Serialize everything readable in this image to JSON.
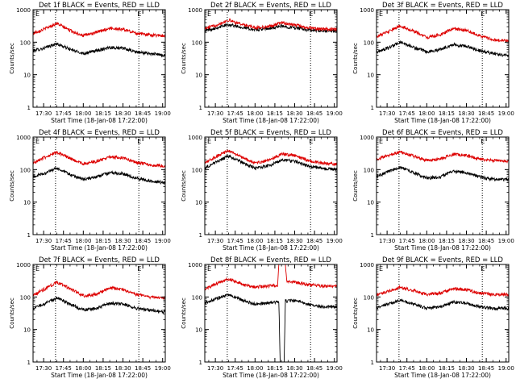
{
  "chart_data": [
    {
      "type": "line",
      "title": "Det 1f BLACK = Events, RED = LLD",
      "xlabel": "Start Time (18-Jan-08 17:22:00)",
      "ylabel": "Counts/sec",
      "yscale": "log",
      "ylim": [
        1,
        1000
      ],
      "xlim": [
        "17:22",
        "19:02"
      ],
      "x_ticks": [
        "17:30",
        "17:45",
        "18:00",
        "18:15",
        "18:30",
        "18:45",
        "19:00"
      ],
      "y_ticks": [
        "1",
        "10",
        "100",
        "1000"
      ],
      "marker_times": [
        "17:39",
        "18:42"
      ],
      "top_marks": [
        "E",
        "E"
      ],
      "x": [
        "17:22",
        "17:30",
        "17:40",
        "17:50",
        "18:00",
        "18:10",
        "18:20",
        "18:30",
        "18:40",
        "18:50",
        "19:00",
        "19:02"
      ],
      "series": [
        {
          "name": "BLACK = Events",
          "color": "#000000",
          "values": [
            55,
            65,
            90,
            60,
            45,
            55,
            70,
            65,
            50,
            45,
            40,
            40
          ]
        },
        {
          "name": "RED = LLD",
          "color": "#dd0000",
          "values": [
            190,
            250,
            380,
            230,
            160,
            200,
            270,
            250,
            190,
            170,
            160,
            160
          ]
        }
      ]
    },
    {
      "type": "line",
      "title": "Det 2f BLACK = Events, RED = LLD",
      "xlabel": "Start Time (18-Jan-08 17:22:00)",
      "ylabel": "Counts/sec",
      "yscale": "log",
      "ylim": [
        1,
        1000
      ],
      "xlim": [
        "17:22",
        "19:02"
      ],
      "x_ticks": [
        "17:30",
        "17:45",
        "18:00",
        "18:15",
        "18:30",
        "18:45",
        "19:00"
      ],
      "y_ticks": [
        "1",
        "10",
        "100",
        "1000"
      ],
      "marker_times": [
        "17:39",
        "18:42"
      ],
      "top_marks": [
        "E",
        "E"
      ],
      "x": [
        "17:22",
        "17:30",
        "17:40",
        "17:50",
        "18:00",
        "18:10",
        "18:20",
        "18:30",
        "18:40",
        "18:50",
        "19:00",
        "19:02"
      ],
      "series": [
        {
          "name": "BLACK = Events",
          "color": "#000000",
          "values": [
            230,
            270,
            350,
            290,
            240,
            260,
            310,
            280,
            240,
            220,
            220,
            220
          ]
        },
        {
          "name": "RED = LLD",
          "color": "#dd0000",
          "values": [
            260,
            330,
            480,
            360,
            280,
            300,
            400,
            340,
            280,
            250,
            250,
            250
          ]
        }
      ]
    },
    {
      "type": "line",
      "title": "Det 3f BLACK = Events, RED = LLD",
      "xlabel": "Start Time (18-Jan-08 17:22:00)",
      "ylabel": "Counts/sec",
      "yscale": "log",
      "ylim": [
        1,
        1000
      ],
      "xlim": [
        "17:22",
        "19:02"
      ],
      "x_ticks": [
        "17:30",
        "17:45",
        "18:00",
        "18:15",
        "18:30",
        "18:45",
        "19:00"
      ],
      "y_ticks": [
        "1",
        "10",
        "100",
        "1000"
      ],
      "marker_times": [
        "17:39",
        "18:42"
      ],
      "top_marks": [
        "E",
        "E"
      ],
      "x": [
        "17:22",
        "17:30",
        "17:40",
        "17:50",
        "18:00",
        "18:10",
        "18:20",
        "18:30",
        "18:40",
        "18:50",
        "19:00",
        "19:02"
      ],
      "series": [
        {
          "name": "BLACK = Events",
          "color": "#000000",
          "values": [
            50,
            65,
            100,
            70,
            50,
            60,
            85,
            75,
            55,
            45,
            40,
            40
          ]
        },
        {
          "name": "RED = LLD",
          "color": "#dd0000",
          "values": [
            150,
            200,
            320,
            220,
            140,
            170,
            260,
            230,
            160,
            120,
            110,
            110
          ]
        }
      ]
    },
    {
      "type": "line",
      "title": "Det 4f BLACK = Events, RED = LLD",
      "xlabel": "Start Time (18-Jan-08 17:22:00)",
      "ylabel": "Counts/sec",
      "yscale": "log",
      "ylim": [
        1,
        1000
      ],
      "xlim": [
        "17:22",
        "19:02"
      ],
      "x_ticks": [
        "17:30",
        "17:45",
        "18:00",
        "18:15",
        "18:30",
        "18:45",
        "19:00"
      ],
      "y_ticks": [
        "1",
        "10",
        "100",
        "1000"
      ],
      "marker_times": [
        "17:39",
        "18:42"
      ],
      "top_marks": [
        "E",
        "E"
      ],
      "x": [
        "17:22",
        "17:30",
        "17:40",
        "17:50",
        "18:00",
        "18:10",
        "18:20",
        "18:30",
        "18:40",
        "18:50",
        "19:00",
        "19:02"
      ],
      "series": [
        {
          "name": "BLACK = Events",
          "color": "#000000",
          "values": [
            60,
            75,
            110,
            70,
            50,
            60,
            80,
            75,
            55,
            45,
            40,
            40
          ]
        },
        {
          "name": "RED = LLD",
          "color": "#dd0000",
          "values": [
            160,
            230,
            340,
            220,
            150,
            180,
            250,
            230,
            170,
            140,
            130,
            130
          ]
        }
      ]
    },
    {
      "type": "line",
      "title": "Det 5f BLACK = Events, RED = LLD",
      "xlabel": "Start Time (18-Jan-08 17:22:00)",
      "ylabel": "Counts/sec",
      "yscale": "log",
      "ylim": [
        1,
        1000
      ],
      "xlim": [
        "17:22",
        "19:02"
      ],
      "x_ticks": [
        "17:30",
        "17:45",
        "18:00",
        "18:15",
        "18:30",
        "18:45",
        "19:00"
      ],
      "y_ticks": [
        "1",
        "10",
        "100",
        "1000"
      ],
      "marker_times": [
        "17:39",
        "18:42"
      ],
      "top_marks": [
        "E",
        "E"
      ],
      "x": [
        "17:22",
        "17:30",
        "17:40",
        "17:50",
        "18:00",
        "18:10",
        "18:20",
        "18:30",
        "18:40",
        "18:50",
        "19:00",
        "19:02"
      ],
      "series": [
        {
          "name": "BLACK = Events",
          "color": "#000000",
          "values": [
            110,
            170,
            260,
            170,
            110,
            130,
            200,
            180,
            130,
            110,
            100,
            100
          ]
        },
        {
          "name": "RED = LLD",
          "color": "#dd0000",
          "values": [
            170,
            240,
            390,
            240,
            160,
            190,
            300,
            270,
            190,
            160,
            150,
            150
          ]
        }
      ]
    },
    {
      "type": "line",
      "title": "Det 6f BLACK = Events, RED = LLD",
      "xlabel": "Start Time (18-Jan-08 17:22:00)",
      "ylabel": "Counts/sec",
      "yscale": "log",
      "ylim": [
        1,
        1000
      ],
      "xlim": [
        "17:22",
        "19:02"
      ],
      "x_ticks": [
        "17:30",
        "17:45",
        "18:00",
        "18:15",
        "18:30",
        "18:45",
        "19:00"
      ],
      "y_ticks": [
        "1",
        "10",
        "100",
        "1000"
      ],
      "marker_times": [
        "17:39",
        "18:42"
      ],
      "top_marks": [
        "E",
        "E"
      ],
      "x": [
        "17:22",
        "17:30",
        "17:40",
        "17:50",
        "18:00",
        "18:10",
        "18:20",
        "18:30",
        "18:40",
        "18:50",
        "19:00",
        "19:02"
      ],
      "series": [
        {
          "name": "BLACK = Events",
          "color": "#000000",
          "values": [
            60,
            85,
            120,
            80,
            55,
            60,
            90,
            80,
            60,
            50,
            50,
            50
          ]
        },
        {
          "name": "RED = LLD",
          "color": "#dd0000",
          "values": [
            200,
            270,
            350,
            260,
            190,
            210,
            300,
            270,
            210,
            190,
            180,
            180
          ]
        }
      ]
    },
    {
      "type": "line",
      "title": "Det 7f BLACK = Events, RED = LLD",
      "xlabel": "Start Time (18-Jan-08 17:22:00)",
      "ylabel": "Counts/sec",
      "yscale": "log",
      "ylim": [
        1,
        1000
      ],
      "xlim": [
        "17:22",
        "19:02"
      ],
      "x_ticks": [
        "17:30",
        "17:45",
        "18:00",
        "18:15",
        "18:30",
        "18:45",
        "19:00"
      ],
      "y_ticks": [
        "1",
        "10",
        "100",
        "1000"
      ],
      "marker_times": [
        "17:39",
        "18:42"
      ],
      "top_marks": [
        "E",
        "E"
      ],
      "x": [
        "17:22",
        "17:30",
        "17:40",
        "17:50",
        "18:00",
        "18:10",
        "18:20",
        "18:30",
        "18:40",
        "18:50",
        "19:00",
        "19:02"
      ],
      "series": [
        {
          "name": "BLACK = Events",
          "color": "#000000",
          "values": [
            45,
            60,
            95,
            60,
            40,
            45,
            65,
            60,
            45,
            40,
            35,
            35
          ]
        },
        {
          "name": "RED = LLD",
          "color": "#dd0000",
          "values": [
            110,
            170,
            290,
            180,
            110,
            120,
            190,
            170,
            120,
            100,
            95,
            95
          ]
        }
      ]
    },
    {
      "type": "line",
      "title": "Det 8f BLACK = Events, RED = LLD",
      "xlabel": "Start Time (18-Jan-08 17:22:00)",
      "ylabel": "Counts/sec",
      "yscale": "log",
      "ylim": [
        1,
        1000
      ],
      "xlim": [
        "17:22",
        "19:02"
      ],
      "x_ticks": [
        "17:30",
        "17:45",
        "18:00",
        "18:15",
        "18:30",
        "18:45",
        "19:00"
      ],
      "y_ticks": [
        "1",
        "10",
        "100",
        "1000"
      ],
      "marker_times": [
        "17:39",
        "18:42"
      ],
      "top_marks": [
        "E",
        "E"
      ],
      "x": [
        "17:22",
        "17:30",
        "17:40",
        "17:50",
        "18:00",
        "18:10",
        "18:17",
        "18:18",
        "18:19",
        "18:22",
        "18:23",
        "18:24",
        "18:30",
        "18:40",
        "18:50",
        "19:00",
        "19:02"
      ],
      "series": [
        {
          "name": "BLACK = Events",
          "color": "#000000",
          "values": [
            65,
            85,
            120,
            80,
            60,
            65,
            70,
            70,
            1,
            1,
            80,
            75,
            80,
            60,
            50,
            50,
            50
          ]
        },
        {
          "name": "RED = LLD",
          "color": "#dd0000",
          "values": [
            170,
            250,
            360,
            250,
            200,
            220,
            230,
            1000,
            1000,
            1000,
            1000,
            300,
            290,
            240,
            220,
            210,
            210
          ]
        }
      ]
    },
    {
      "type": "line",
      "title": "Det 9f BLACK = Events, RED = LLD",
      "xlabel": "Start Time (18-Jan-08 17:22:00)",
      "ylabel": "Counts/sec",
      "yscale": "log",
      "ylim": [
        1,
        1000
      ],
      "xlim": [
        "17:22",
        "19:02"
      ],
      "x_ticks": [
        "17:30",
        "17:45",
        "18:00",
        "18:15",
        "18:30",
        "18:45",
        "19:00"
      ],
      "y_ticks": [
        "1",
        "10",
        "100",
        "1000"
      ],
      "marker_times": [
        "17:39",
        "18:42"
      ],
      "top_marks": [
        "E",
        "E"
      ],
      "x": [
        "17:22",
        "17:30",
        "17:40",
        "17:50",
        "18:00",
        "18:10",
        "18:20",
        "18:30",
        "18:40",
        "18:50",
        "19:00",
        "19:02"
      ],
      "series": [
        {
          "name": "BLACK = Events",
          "color": "#000000",
          "values": [
            45,
            60,
            80,
            60,
            45,
            50,
            70,
            65,
            50,
            45,
            45,
            45
          ]
        },
        {
          "name": "RED = LLD",
          "color": "#dd0000",
          "values": [
            110,
            150,
            200,
            160,
            120,
            130,
            180,
            170,
            130,
            120,
            120,
            120
          ]
        }
      ]
    }
  ]
}
